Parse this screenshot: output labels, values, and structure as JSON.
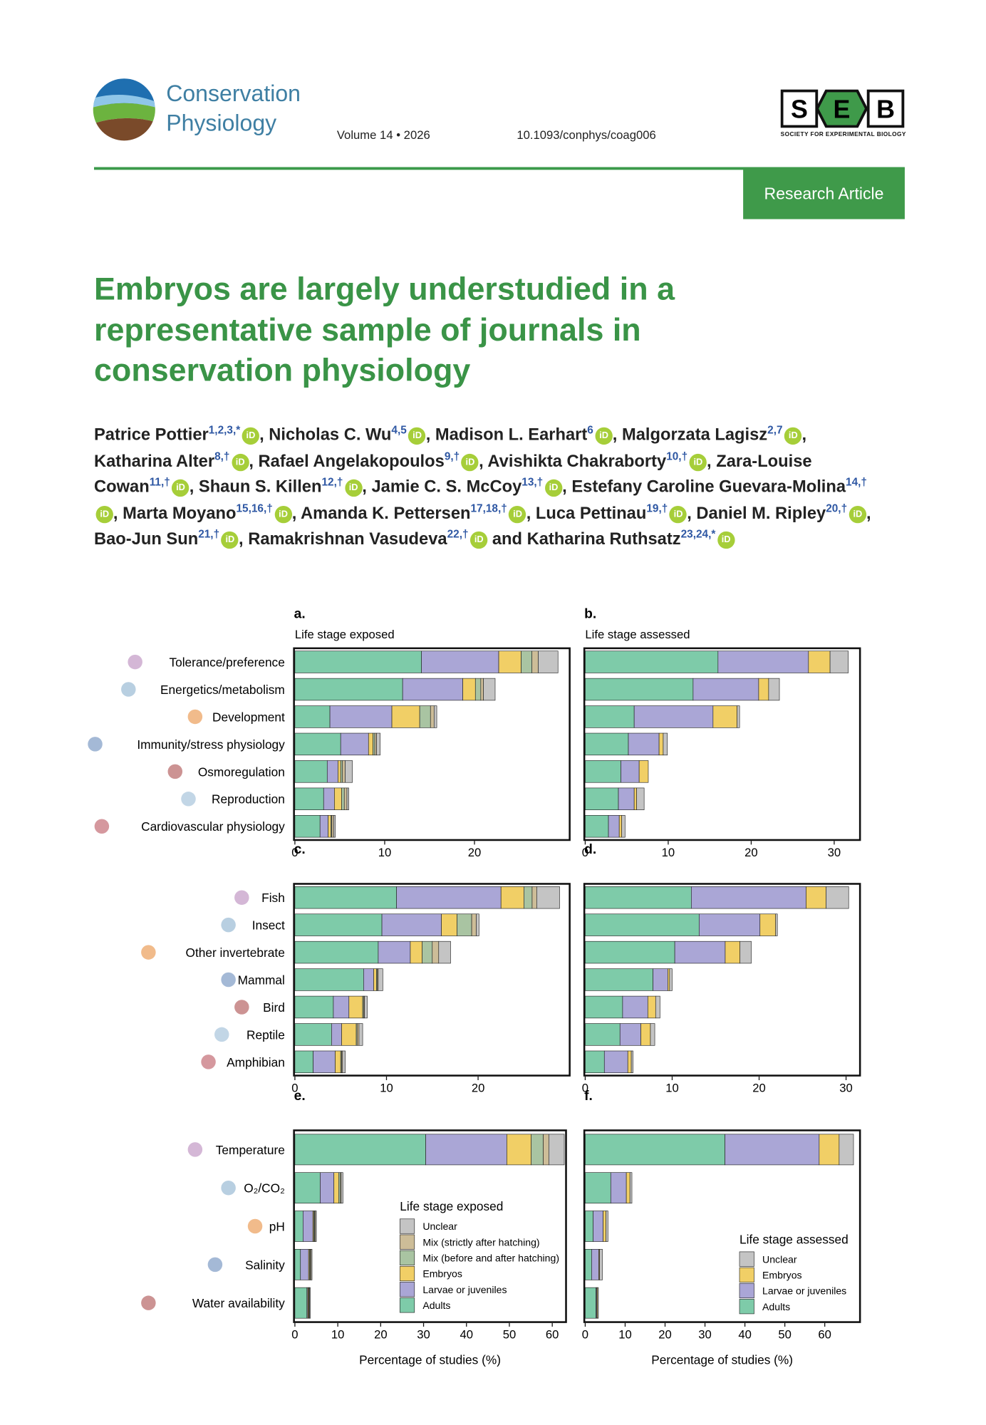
{
  "header": {
    "journal": [
      "Conservation",
      "Physiology"
    ],
    "volume": "Volume 14 • 2026",
    "doi": "10.1093/conphys/coag006",
    "society_logo": [
      "S",
      "E",
      "B"
    ],
    "society": "SOCIETY FOR EXPERIMENTAL BIOLOGY",
    "article_type": "Research Article"
  },
  "title": [
    "Embryos are largely understudied in a",
    "representative sample of journals in",
    "conservation physiology"
  ],
  "orcid_icon": "iD",
  "authors": [
    {
      "name": "Patrice Pottier",
      "affiliations": "1,2,3,*",
      "separator": ","
    },
    {
      "name": "Nicholas C. Wu",
      "affiliations": "4,5",
      "separator": ","
    },
    {
      "name": "Madison L. Earhart",
      "affiliations": "6",
      "separator": ","
    },
    {
      "name": "Malgorzata Lagisz",
      "affiliations": "2,7",
      "separator": ","
    },
    {
      "name": "Katharina Alter",
      "affiliations": "8,†",
      "separator": ","
    },
    {
      "name": "Rafael Angelakopoulos",
      "affiliations": "9,†",
      "separator": ","
    },
    {
      "name": "Avishikta Chakraborty",
      "affiliations": "10,†",
      "separator": ","
    },
    {
      "name": "Zara-Louise Cowan",
      "affiliations": "11,†",
      "separator": ","
    },
    {
      "name": "Shaun S. Killen",
      "affiliations": "12,†",
      "separator": ","
    },
    {
      "name": "Jamie C. S. McCoy",
      "affiliations": "13,†",
      "separator": ","
    },
    {
      "name": "Estefany Caroline Guevara-Molina",
      "affiliations": "14,†",
      "separator": ","
    },
    {
      "name": "Marta Moyano",
      "affiliations": "15,16,†",
      "separator": ","
    },
    {
      "name": "Amanda K. Pettersen",
      "affiliations": "17,18,†",
      "separator": ","
    },
    {
      "name": "Luca Pettinau",
      "affiliations": "19,†",
      "separator": ","
    },
    {
      "name": "Daniel M. Ripley",
      "affiliations": "20,†",
      "separator": ","
    },
    {
      "name": "Bao-Jun Sun",
      "affiliations": "21,†",
      "separator": ","
    },
    {
      "name": "Ramakrishnan Vasudeva",
      "affiliations": "22,†",
      "separator": "and"
    },
    {
      "name": "Katharina Ruthsatz",
      "affiliations": "23,24,*"
    }
  ],
  "chart_data": [
    {
      "type": "bar",
      "orientation": "horizontal",
      "stacked": true,
      "label": "a.",
      "subtitle": "Life stage exposed",
      "categories": [
        "Tolerance/preference",
        "Energetics/metabolism",
        "Development",
        "Immunity/stress physiology",
        "Osmoregulation",
        "Reproduction",
        "Cardiovascular physiology"
      ],
      "series": [
        {
          "color": "#7ecba9",
          "values": [
            14.1,
            12.0,
            3.9,
            5.1,
            3.6,
            3.2,
            2.8
          ]
        },
        {
          "color": "#aaa6d6",
          "values": [
            8.6,
            6.7,
            6.9,
            3.1,
            1.2,
            1.2,
            0.9
          ]
        },
        {
          "color": "#f1cf66",
          "values": [
            2.5,
            1.4,
            3.1,
            0.5,
            0.3,
            0.8,
            0.3
          ]
        },
        {
          "color": "#a9c4a2",
          "values": [
            1.2,
            0.6,
            1.2,
            0.2,
            0.2,
            0.3,
            0.1
          ]
        },
        {
          "color": "#cdbd98",
          "values": [
            0.7,
            0.3,
            0.4,
            0.2,
            0.3,
            0.3,
            0.2
          ]
        },
        {
          "color": "#c4c4c4",
          "values": [
            2.2,
            1.3,
            0.3,
            0.4,
            0.8,
            0.2,
            0.2
          ]
        }
      ],
      "xlim": [
        0,
        30.5
      ],
      "xticks": [
        0,
        10,
        20
      ]
    },
    {
      "type": "bar",
      "orientation": "horizontal",
      "stacked": true,
      "label": "b.",
      "subtitle": "Life stage assessed",
      "series": [
        {
          "color": "#7ecba9",
          "values": [
            16.0,
            13.0,
            5.9,
            5.2,
            4.3,
            4.0,
            2.8
          ]
        },
        {
          "color": "#aaa6d6",
          "values": [
            10.9,
            7.9,
            9.5,
            3.7,
            2.2,
            1.9,
            1.3
          ]
        },
        {
          "color": "#f1cf66",
          "values": [
            2.6,
            1.2,
            2.9,
            0.5,
            1.1,
            0.3,
            0.3
          ]
        },
        {
          "color": "#c4c4c4",
          "values": [
            2.2,
            1.3,
            0.3,
            0.5,
            0,
            0.9,
            0.4
          ]
        }
      ],
      "xlim": [
        0,
        33
      ],
      "xticks": [
        0,
        10,
        20,
        30
      ]
    },
    {
      "type": "bar",
      "orientation": "horizontal",
      "stacked": true,
      "label": "c.",
      "categories": [
        "Fish",
        "Insect",
        "Other invertebrate",
        "Mammal",
        "Bird",
        "Reptile",
        "Amphibian"
      ],
      "series": [
        {
          "color": "#7ecba9",
          "values": [
            11.1,
            9.5,
            9.1,
            7.5,
            4.2,
            4.0,
            2.0
          ]
        },
        {
          "color": "#aaa6d6",
          "values": [
            11.4,
            6.5,
            3.5,
            1.1,
            1.7,
            1.1,
            2.4
          ]
        },
        {
          "color": "#f1cf66",
          "values": [
            2.5,
            1.7,
            1.3,
            0.3,
            1.5,
            1.6,
            0.6
          ]
        },
        {
          "color": "#a9c4a2",
          "values": [
            0.9,
            1.6,
            1.1,
            0.1,
            0.1,
            0.1,
            0.1
          ]
        },
        {
          "color": "#cdbd98",
          "values": [
            0.5,
            0.5,
            0.7,
            0.1,
            0.1,
            0.2,
            0.1
          ]
        },
        {
          "color": "#c4c4c4",
          "values": [
            2.5,
            0.3,
            1.3,
            0.5,
            0.3,
            0.4,
            0.3
          ]
        }
      ],
      "xlim": [
        0,
        29.9
      ],
      "xticks": [
        0,
        10,
        20
      ]
    },
    {
      "type": "bar",
      "orientation": "horizontal",
      "stacked": true,
      "label": "d.",
      "series": [
        {
          "color": "#7ecba9",
          "values": [
            12.2,
            13.1,
            10.3,
            7.8,
            4.3,
            4.0,
            2.2
          ]
        },
        {
          "color": "#aaa6d6",
          "values": [
            13.2,
            7.0,
            5.8,
            1.7,
            2.9,
            2.4,
            2.7
          ]
        },
        {
          "color": "#f1cf66",
          "values": [
            2.3,
            1.8,
            1.7,
            0.2,
            0.9,
            1.1,
            0.4
          ]
        },
        {
          "color": "#c4c4c4",
          "values": [
            2.6,
            0.2,
            1.3,
            0.3,
            0.5,
            0.5,
            0.2
          ]
        }
      ],
      "xlim": [
        0,
        31.5
      ],
      "xticks": [
        0,
        10,
        20,
        30
      ]
    },
    {
      "type": "bar",
      "orientation": "horizontal",
      "stacked": true,
      "label": "e.",
      "categories": [
        "Temperature",
        "O₂/CO₂",
        "pH",
        "Salinity",
        "Water availability"
      ],
      "series": [
        {
          "name": "Adults",
          "color": "#7ecba9",
          "values": [
            30.5,
            5.9,
            1.9,
            1.3,
            2.8
          ]
        },
        {
          "name": "Larvae or juveniles",
          "color": "#aaa6d6",
          "values": [
            18.9,
            3.2,
            2.3,
            1.9,
            0.2
          ]
        },
        {
          "name": "Embryos",
          "color": "#f1cf66",
          "values": [
            5.7,
            1.1,
            0.2,
            0.2,
            0.2
          ]
        },
        {
          "name": "Mix (before and after hatching)",
          "color": "#a9c4a2",
          "values": [
            2.8,
            0.4,
            0.2,
            0.2,
            0.1
          ]
        },
        {
          "name": "Mix (strictly after hatching)",
          "color": "#cdbd98",
          "values": [
            1.3,
            0.2,
            0.2,
            0.2,
            0.1
          ]
        },
        {
          "name": "Unclear",
          "color": "#c4c4c4",
          "values": [
            3.6,
            0.4,
            0.2,
            0.2,
            0.2
          ]
        }
      ],
      "xlim": [
        0,
        63
      ],
      "xticks": [
        0,
        10,
        20,
        30,
        40,
        50,
        60
      ],
      "xlabel": "Percentage of studies (%)",
      "legend": true,
      "legend_title": "Life stage exposed"
    },
    {
      "type": "bar",
      "orientation": "horizontal",
      "stacked": true,
      "label": "f.",
      "series": [
        {
          "name": "Adults",
          "color": "#7ecba9",
          "values": [
            35.0,
            6.4,
            2.0,
            1.6,
            2.7
          ]
        },
        {
          "name": "Larvae or juveniles",
          "color": "#aaa6d6",
          "values": [
            23.6,
            3.9,
            2.5,
            1.8,
            0.2
          ]
        },
        {
          "name": "Embryos",
          "color": "#f1cf66",
          "values": [
            5.0,
            0.9,
            0.7,
            0.2,
            0.2
          ]
        },
        {
          "name": "Unclear",
          "color": "#c4c4c4",
          "values": [
            3.6,
            0.5,
            0.5,
            0.7,
            0.2
          ]
        }
      ],
      "xlim": [
        0,
        68.6
      ],
      "xticks": [
        0,
        10,
        20,
        30,
        40,
        50,
        60
      ],
      "xlabel": "Percentage of studies (%)",
      "legend": true,
      "legend_title": "Life stage assessed"
    }
  ]
}
